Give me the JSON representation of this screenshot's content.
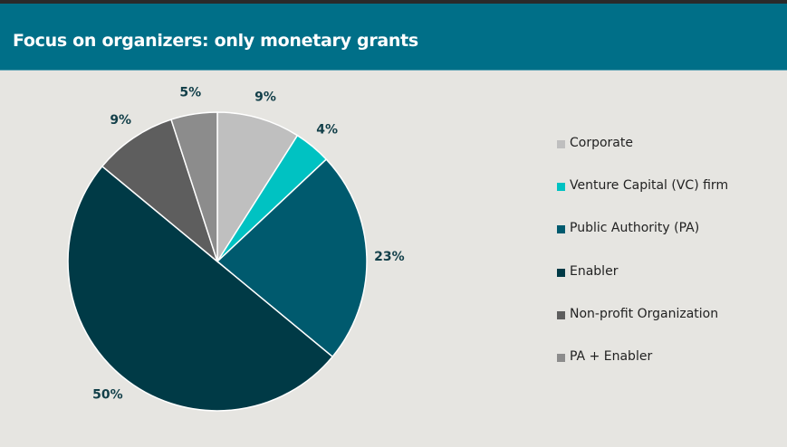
{
  "header": {
    "title": "Focus on organizers: only monetary grants"
  },
  "chart_data": {
    "type": "pie",
    "title": "Focus on organizers: only monetary grants",
    "legend_position": "right",
    "categories": [
      "Corporate",
      "Venture Capital (VC) firm",
      "Public Authority (PA)",
      "Enabler",
      "Non-profit Organization",
      "PA + Enabler"
    ],
    "values": [
      9,
      4,
      23,
      50,
      9,
      5
    ],
    "labels": [
      "9%",
      "4%",
      "23%",
      "50%",
      "9%",
      "5%"
    ],
    "colors": [
      "#bfbfbf",
      "#00c2c2",
      "#005a6e",
      "#003a46",
      "#5e5e5e",
      "#8c8c8c"
    ]
  }
}
